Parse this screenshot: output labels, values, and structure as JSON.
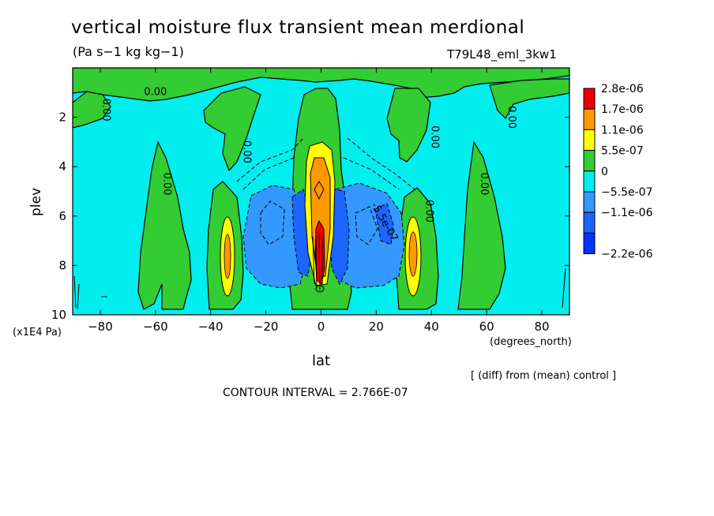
{
  "chart_data": {
    "type": "contour",
    "title": "vertical moisture flux transient mean merdional",
    "units": "(Pa s−1 kg kg−1)",
    "run_id": "T79L48_eml_3kw1",
    "xlabel": "lat",
    "x_units_label": "(degrees_north)",
    "ylabel": "plev",
    "y_scale_label": "(x1E4 Pa)",
    "xlim": [
      -90,
      90
    ],
    "ylim": [
      10,
      0
    ],
    "x_ticks": [
      -80,
      -60,
      -40,
      -20,
      0,
      20,
      40,
      60,
      80
    ],
    "x_tick_labels": [
      "−80",
      "−60",
      "−40",
      "−20",
      "0",
      "20",
      "40",
      "60",
      "80"
    ],
    "y_ticks": [
      2,
      4,
      6,
      8,
      10
    ],
    "y_tick_labels": [
      "2",
      "4",
      "6",
      "8",
      "10"
    ],
    "note": "[ (diff) from (mean) control ]",
    "contour_interval_text": "CONTOUR INTERVAL = 2.766E-07",
    "contour_labels": [
      "0.00",
      "0.00",
      "0.00",
      "0.00",
      "0.00",
      "0.00",
      "0.00",
      "0.00",
      "-5.5e-07"
    ],
    "legend": {
      "levels": [
        "2.8e-06",
        "1.7e-06",
        "1.1e-06",
        "5.5e-07",
        "0",
        "−5.5e-07",
        "−1.1e-06",
        "−2.2e-06"
      ],
      "colors": [
        "#ee0000",
        "#ff9900",
        "#ffff00",
        "#33cc33",
        "#00eeee",
        "#3399ff",
        "#1a66ff",
        "#0033ff"
      ]
    },
    "regions": [
      {
        "name": "upper green band",
        "color_level": "0 to 5.5e-07",
        "lat": [
          -88,
          88
        ],
        "plev": [
          0.2,
          1.4
        ]
      },
      {
        "name": "equatorial positive core",
        "color_level": "up to 2.8e-06",
        "lat": [
          -4,
          4
        ],
        "plev": [
          2.8,
          9.2
        ]
      },
      {
        "name": "southern subtropical max",
        "color_level": "1.1e-06",
        "lat": [
          -37,
          -31
        ],
        "plev": [
          6.5,
          9.3
        ]
      },
      {
        "name": "northern subtropical max",
        "color_level": "1.1e-06",
        "lat": [
          30,
          37
        ],
        "plev": [
          6.5,
          9.3
        ]
      },
      {
        "name": "southern negative lobe",
        "color_level": "-1.1e-06",
        "lat": [
          -28,
          -6
        ],
        "plev": [
          4.8,
          8.8
        ]
      },
      {
        "name": "northern negative lobe",
        "color_level": "-1.1e-06",
        "lat": [
          5,
          28
        ],
        "plev": [
          4.8,
          8.8
        ]
      },
      {
        "name": "southern midlat green column",
        "color_level": "0 to 5.5e-07",
        "lat": [
          -65,
          -50
        ],
        "plev": [
          3.5,
          9.9
        ]
      },
      {
        "name": "northern midlat green column",
        "color_level": "0 to 5.5e-07",
        "lat": [
          50,
          65
        ],
        "plev": [
          3.5,
          9.9
        ]
      }
    ]
  }
}
